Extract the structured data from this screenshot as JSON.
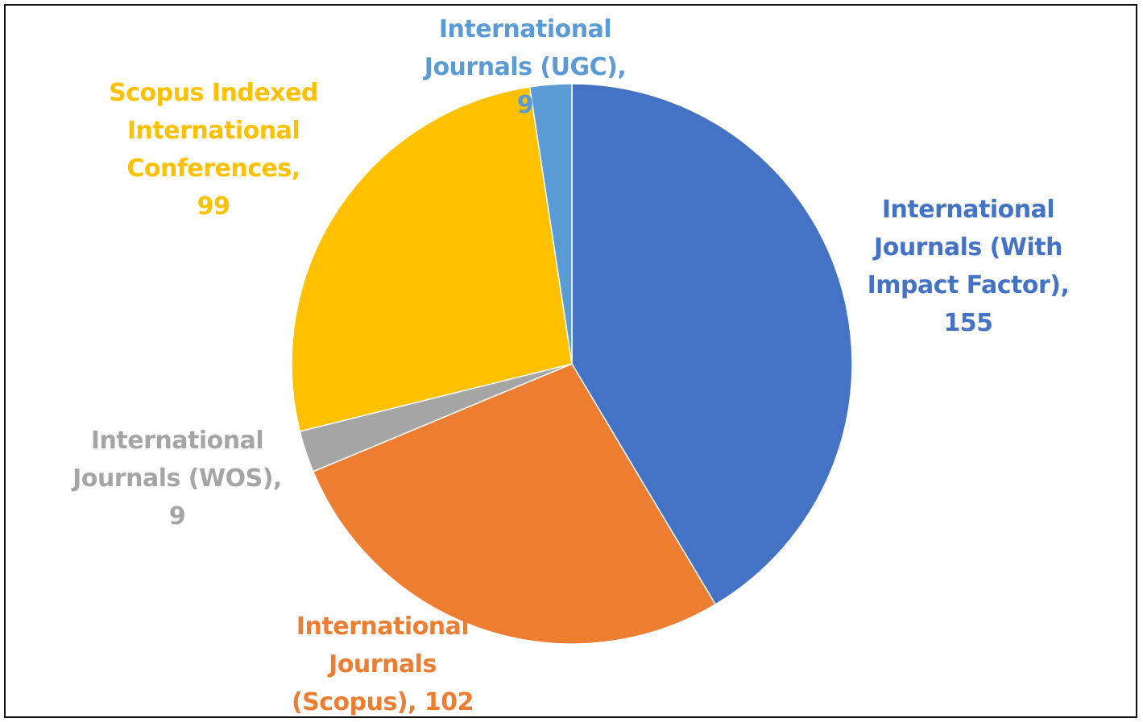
{
  "chart_data": {
    "type": "pie",
    "title": "",
    "slices": [
      {
        "category": "International Journals (With Impact Factor)",
        "value": 155,
        "color": "#4472C4",
        "label": "International\nJournals (With\nImpact Factor),\n155"
      },
      {
        "category": "International Journals (Scopus)",
        "value": 102,
        "color": "#ED7D31",
        "label": "International\nJournals\n(Scopus), 102"
      },
      {
        "category": "International Journals (WOS)",
        "value": 9,
        "color": "#A5A5A5",
        "label": "International\nJournals (WOS),\n9"
      },
      {
        "category": "Scopus Indexed International Conferences",
        "value": 99,
        "color": "#FFC000",
        "label": "Scopus Indexed\nInternational\nConferences,\n99"
      },
      {
        "category": "International Journals (UGC)",
        "value": 9,
        "color": "#5B9BD5",
        "label": "International\nJournals (UGC),\n9"
      }
    ],
    "start_angle_deg": 0,
    "direction": "clockwise",
    "legend": "none",
    "data_labels": "outside, category name and value"
  }
}
